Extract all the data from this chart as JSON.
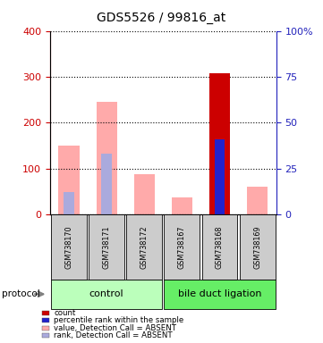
{
  "title": "GDS5526 / 99816_at",
  "samples": [
    "GSM738170",
    "GSM738171",
    "GSM738172",
    "GSM738167",
    "GSM738168",
    "GSM738169"
  ],
  "groups": [
    "control",
    "control",
    "control",
    "bile duct ligation",
    "bile duct ligation",
    "bile duct ligation"
  ],
  "left_ylim": [
    0,
    400
  ],
  "right_ylim": [
    0,
    100
  ],
  "left_yticks": [
    0,
    100,
    200,
    300,
    400
  ],
  "right_yticks": [
    0,
    25,
    50,
    75,
    100
  ],
  "right_yticklabels": [
    "0",
    "25",
    "50",
    "75",
    "100%"
  ],
  "value_absent_left": [
    150,
    245,
    87,
    37,
    0,
    60
  ],
  "rank_absent_right": [
    12,
    33,
    0,
    0,
    0,
    0
  ],
  "count_present_left": [
    0,
    0,
    0,
    0,
    307,
    0
  ],
  "rank_present_right": [
    0,
    0,
    0,
    0,
    41,
    0
  ],
  "color_count": "#cc0000",
  "color_rank_present": "#2222cc",
  "color_value_absent": "#ffaaaa",
  "color_rank_absent": "#aaaadd",
  "sample_box_color": "#cccccc",
  "control_color": "#bbffbb",
  "bdl_color": "#66ee66",
  "legend_items": [
    {
      "color": "#cc0000",
      "label": "count"
    },
    {
      "color": "#2222cc",
      "label": "percentile rank within the sample"
    },
    {
      "color": "#ffaaaa",
      "label": "value, Detection Call = ABSENT"
    },
    {
      "color": "#aaaadd",
      "label": "rank, Detection Call = ABSENT"
    }
  ],
  "left_axis_color": "#cc0000",
  "right_axis_color": "#2222bb",
  "background_color": "#ffffff"
}
